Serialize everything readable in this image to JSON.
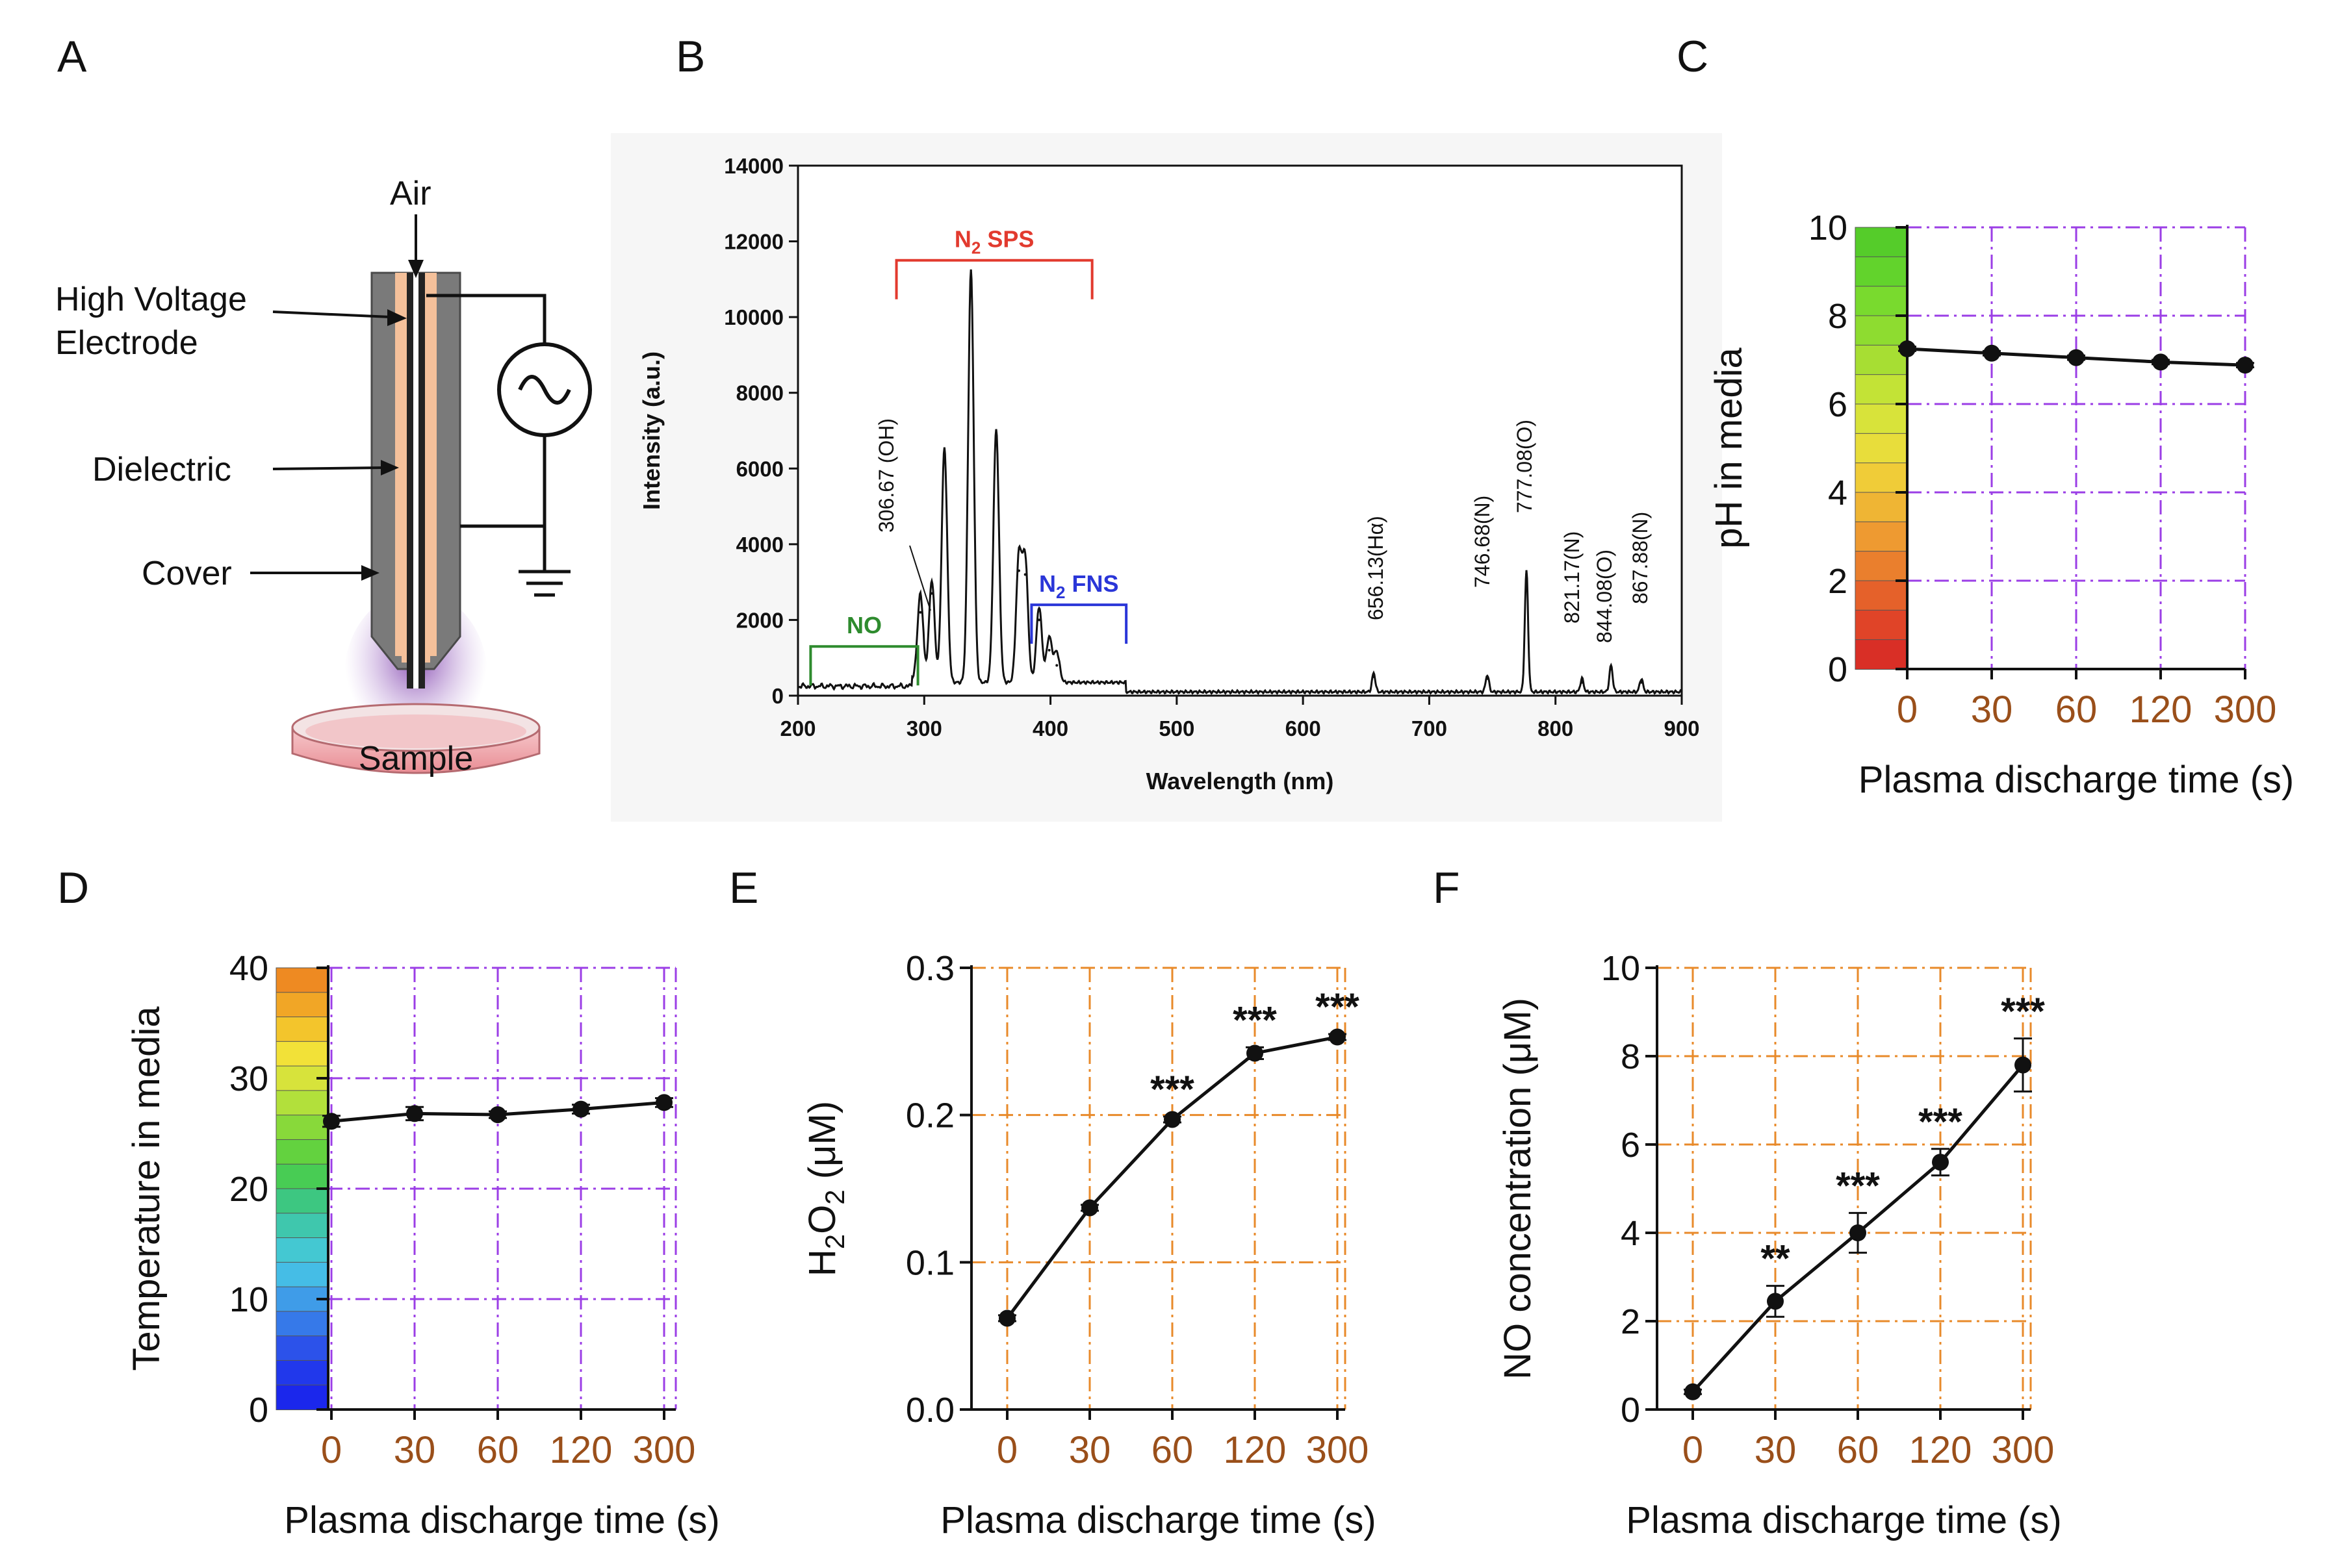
{
  "panels": {
    "A": "A",
    "B": "B",
    "C": "C",
    "D": "D",
    "E": "E",
    "F": "F"
  },
  "diagram": {
    "air": "Air",
    "high_voltage_1": "High Voltage",
    "high_voltage_2": "Electrode",
    "dielectric": "Dielectric",
    "cover": "Cover",
    "sample": "Sample",
    "ac_source_icon": "ac-source-icon",
    "ground_icon": "ground-icon"
  },
  "spectrum": {
    "type": "line",
    "xlabel": "Wavelength (nm)",
    "ylabel": "Intensity (a.u.)",
    "xlim": [
      200,
      900
    ],
    "ylim": [
      0,
      14000
    ],
    "xticks": [
      "200",
      "300",
      "400",
      "500",
      "600",
      "700",
      "800",
      "900"
    ],
    "yticks": [
      "0",
      "2000",
      "4000",
      "6000",
      "8000",
      "10000",
      "12000",
      "14000"
    ],
    "bands": [
      {
        "name": "N2 SPS",
        "label_main": "N",
        "label_sub": "2",
        "label_rest": " SPS",
        "color": "#e23a2e",
        "range": [
          278,
          433
        ],
        "level": 11500
      },
      {
        "name": "N2 FNS",
        "label_main": "N",
        "label_sub": "2",
        "label_rest": " FNS",
        "color": "#2a36d8",
        "range": [
          385,
          460
        ],
        "level": 2400
      },
      {
        "name": "NO",
        "label_main": "NO",
        "label_sub": "",
        "label_rest": "",
        "color": "#2e8b2e",
        "range": [
          210,
          295
        ],
        "level": 1300
      }
    ],
    "annotations": [
      "306.67 (OH)",
      "656.13(Hα)",
      "746.68(N)",
      "777.08(O)",
      "821.17(N)",
      "844.08(O)",
      "867.88(N)"
    ],
    "peaks": [
      {
        "x": 297,
        "y": 2200
      },
      {
        "x": 306,
        "y": 2700
      },
      {
        "x": 316,
        "y": 6200
      },
      {
        "x": 337,
        "y": 10900
      },
      {
        "x": 357,
        "y": 6700
      },
      {
        "x": 375,
        "y": 3300
      },
      {
        "x": 380,
        "y": 3200
      },
      {
        "x": 391,
        "y": 2000
      },
      {
        "x": 399,
        "y": 1200
      },
      {
        "x": 405,
        "y": 800
      },
      {
        "x": 656,
        "y": 500
      },
      {
        "x": 746,
        "y": 450
      },
      {
        "x": 777,
        "y": 3200
      },
      {
        "x": 821,
        "y": 350
      },
      {
        "x": 844,
        "y": 700
      },
      {
        "x": 868,
        "y": 350
      }
    ]
  },
  "chart_data": [
    {
      "panel": "C",
      "type": "line",
      "categories": [
        "0",
        "30",
        "60",
        "120",
        "300"
      ],
      "values": [
        7.25,
        7.15,
        7.05,
        6.95,
        6.88
      ],
      "errors": [
        0.05,
        0.05,
        0.05,
        0.05,
        0.05
      ],
      "xlabel": "Plasma discharge time (s)",
      "ylabel": "pH in media",
      "ylim": [
        0,
        10
      ],
      "yticks": [
        "0",
        "2",
        "4",
        "6",
        "8",
        "10"
      ],
      "grid_color": "#9b3ee6",
      "scale_colors": [
        "#55cc2a",
        "#62d32c",
        "#79da2e",
        "#8edc30",
        "#a7de33",
        "#c3e336",
        "#d8e33a",
        "#e8dd3b",
        "#f0cc38",
        "#efb534",
        "#ee9a31",
        "#ea7f2d",
        "#e5612a",
        "#e04428",
        "#d92f26"
      ]
    },
    {
      "panel": "D",
      "type": "line",
      "categories": [
        "0",
        "30",
        "60",
        "120",
        "300"
      ],
      "values": [
        26.1,
        26.8,
        26.7,
        27.2,
        27.8
      ],
      "errors": [
        0.5,
        0.6,
        0.3,
        0.4,
        0.4
      ],
      "xlabel": "Plasma discharge time (s)",
      "ylabel": "Temperature in media",
      "ylim": [
        0,
        40
      ],
      "yticks": [
        "0",
        "10",
        "20",
        "30",
        "40"
      ],
      "grid_color": "#9b3ee6",
      "scale_colors": [
        "#ee8a22",
        "#f1a626",
        "#f3c52c",
        "#f2e138",
        "#d7e33b",
        "#b2e03b",
        "#88d93a",
        "#63d23f",
        "#48cc54",
        "#3dc781",
        "#3fc7ad",
        "#44c8d2",
        "#45bde6",
        "#3f9ce8",
        "#3679e9",
        "#2c52ea",
        "#2138eb",
        "#1b27ec"
      ]
    },
    {
      "panel": "E",
      "type": "line",
      "categories": [
        "0",
        "30",
        "60",
        "120",
        "300"
      ],
      "values": [
        0.062,
        0.137,
        0.197,
        0.242,
        0.253
      ],
      "errors": [
        0.002,
        0.002,
        0.002,
        0.004,
        0.002
      ],
      "significance": [
        "",
        "",
        "***",
        "***",
        "***"
      ],
      "xlabel": "Plasma discharge time (s)",
      "ylabel_main": "H",
      "ylabel_sub1": "2",
      "ylabel_mid": "O",
      "ylabel_sub2": "2",
      "ylabel_tail": " (μM)",
      "ylim": [
        0,
        0.3
      ],
      "yticks": [
        "0.0",
        "0.1",
        "0.2",
        "0.3"
      ],
      "grid_color": "#e88a2a"
    },
    {
      "panel": "F",
      "type": "line",
      "categories": [
        "0",
        "30",
        "60",
        "120",
        "300"
      ],
      "values": [
        0.4,
        2.45,
        4.0,
        5.6,
        7.8
      ],
      "errors": [
        0.05,
        0.35,
        0.45,
        0.3,
        0.6
      ],
      "significance": [
        "",
        "**",
        "***",
        "***",
        "***"
      ],
      "xlabel": "Plasma discharge time (s)",
      "ylabel": "NO concentration (μM)",
      "ylim": [
        0,
        10
      ],
      "yticks": [
        "0",
        "2",
        "4",
        "6",
        "8",
        "10"
      ],
      "grid_color": "#e88a2a"
    }
  ]
}
